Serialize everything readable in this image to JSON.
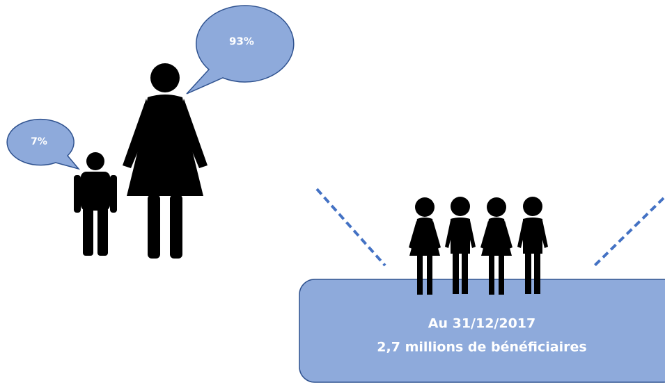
{
  "bubbles": [
    {
      "label": "93%"
    },
    {
      "label": "7%"
    }
  ],
  "box": {
    "lines": [
      "Au 31/12/2017",
      "2,7 millions de bénéficiaires"
    ]
  }
}
